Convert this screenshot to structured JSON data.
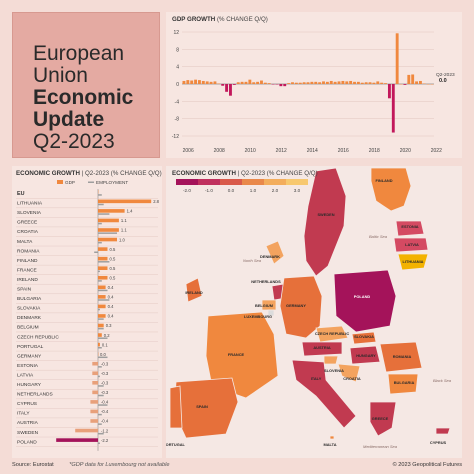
{
  "title": {
    "line1": "European",
    "line2": "Union",
    "line3": "Economic",
    "line4": "Update",
    "line5": "Q2-2023"
  },
  "colors": {
    "gdp_bar": "#f0883e",
    "gdp_neg": "#c2185b",
    "employment": "#9e9e9e",
    "poland": "#a4135a",
    "background": "#f4dcd6"
  },
  "chart_data": [
    {
      "type": "bar",
      "title": "GDP GROWTH",
      "subtitle": "(% CHANGE Q/Q)",
      "ylim": [
        -12,
        12
      ],
      "yticks": [
        "12",
        "8",
        "4",
        "0",
        "-4",
        "-8",
        "-12"
      ],
      "xticks": [
        "2006",
        "2008",
        "2010",
        "2012",
        "2014",
        "2016",
        "2018",
        "2020",
        "2022"
      ],
      "series": [
        {
          "values": [
            0.7,
            0.9,
            0.8,
            1.0,
            0.9,
            0.7,
            0.6,
            0.5,
            0.6,
            0.1,
            -0.4,
            -1.8,
            -2.7,
            -0.2,
            0.4,
            0.5,
            0.5,
            1.0,
            0.4,
            0.5,
            0.8,
            0.3,
            0.2,
            -0.1,
            -0.1,
            -0.5,
            -0.5,
            0.2,
            0.4,
            0.3,
            0.3,
            0.4,
            0.4,
            0.5,
            0.5,
            0.4,
            0.6,
            0.5,
            0.7,
            0.5,
            0.6,
            0.7,
            0.6,
            0.7,
            0.5,
            0.5,
            0.3,
            0.4,
            0.4,
            0.3,
            0.6,
            0.3,
            0.2,
            -3.3,
            -11.2,
            11.7,
            0.0,
            -0.2,
            2.1,
            2.2,
            0.6,
            0.7,
            0.1,
            0.0,
            0.0
          ]
        }
      ],
      "last_label": "Q2-2023",
      "last_value": "0.0"
    },
    {
      "type": "bar",
      "title": "ECONOMIC GROWTH",
      "subtitle": "| Q2-2023 (% CHANGE Q/Q)",
      "legend": [
        "GDP",
        "EMPLOYMENT"
      ],
      "categories": [
        "EU",
        "LITHUANIA",
        "SLOVENIA",
        "GREECE",
        "CROATIA",
        "MALTA",
        "ROMANIA",
        "FINLAND",
        "FRANCE",
        "IRELAND",
        "SPAIN",
        "BULGARIA",
        "SLOVAKIA",
        "DENMARK",
        "BELGIUM",
        "CZECH REPUBLIC",
        "PORTUGAL",
        "GERMANY",
        "ESTONIA",
        "LATVIA",
        "HUNGARY",
        "NETHERLANDS",
        "CYPRUS",
        "ITALY",
        "AUSTRIA",
        "SWEDEN",
        "POLAND"
      ],
      "value_labels": [
        "",
        "2.8",
        "1.4",
        "1.1",
        "1.1",
        "1.0",
        "0.5",
        "0.5",
        "0.5",
        "0.5",
        "0.4",
        "0.4",
        "0.4",
        "0.4",
        "0.3",
        "0.2",
        "0.1",
        "0.0",
        "-0.3",
        "-0.3",
        "-0.3",
        "-0.3",
        "-0.4",
        "-0.4",
        "-0.4",
        "-1.2",
        "-2.2"
      ],
      "series": [
        {
          "name": "GDP",
          "values": [
            0.0,
            2.8,
            1.4,
            1.1,
            1.1,
            1.0,
            0.5,
            0.5,
            0.5,
            0.5,
            0.4,
            0.4,
            0.4,
            0.4,
            0.3,
            0.2,
            0.1,
            0.0,
            -0.3,
            -0.3,
            -0.3,
            -0.3,
            -0.4,
            -0.4,
            -0.4,
            -1.2,
            -2.2
          ]
        },
        {
          "name": "EMPLOYMENT",
          "values": [
            0.2,
            0.3,
            0.6,
            0.2,
            1.0,
            0.2,
            -0.2,
            0.6,
            0.1,
            0.2,
            0.5,
            0.6,
            0.1,
            0.3,
            0.3,
            0.5,
            0.2,
            0.5,
            0.2,
            0.1,
            0.3,
            0.3,
            0.5,
            0.2,
            0.2,
            0.3,
            0.1
          ]
        }
      ]
    },
    {
      "type": "heatmap",
      "title": "ECONOMIC GROWTH",
      "subtitle": "| Q2-2023 (% CHANGE Q/Q)",
      "scale_ticks": [
        "-2.0",
        "-1.0",
        "0.0",
        "1.0",
        "2.0",
        "3.0"
      ],
      "seas": [
        "North Sea",
        "Baltic Sea",
        "Black Sea",
        "Mediterranean Sea"
      ]
    }
  ],
  "map_labels": [
    "SWEDEN",
    "FINLAND",
    "ESTONIA",
    "LATVIA",
    "DENMARK",
    "LITHUANIA",
    "IRELAND",
    "NETHERLANDS",
    "POLAND",
    "BELGIUM",
    "GERMANY",
    "LUXEMBOURG",
    "CZECH REPUBLIC",
    "SLOVAKIA",
    "AUSTRIA",
    "HUNGARY",
    "FRANCE",
    "SLOVENIA",
    "ROMANIA",
    "CROATIA",
    "ITALY",
    "BULGARIA",
    "SPAIN",
    "PORTUGAL",
    "GREECE",
    "MALTA",
    "CYPRUS"
  ],
  "footer": {
    "source": "Source: Eurostat",
    "note": "*GDP data for Luxembourg not available",
    "copyright": "© 2023 Geopolitical Futures"
  }
}
